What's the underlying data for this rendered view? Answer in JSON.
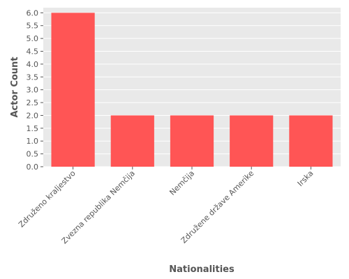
{
  "chart_data": {
    "type": "bar",
    "title": "",
    "categories": [
      "Združeno kraljestvo",
      "Zvezna republika Nemčija",
      "Nemčija",
      "Združene države Amerike",
      "Irska"
    ],
    "values": [
      6,
      2,
      2,
      2,
      2
    ],
    "xlabel": "Nationalities",
    "ylabel": "Actor Count",
    "ylim": [
      0,
      6.2
    ],
    "yticks": [
      "0.0",
      "0.5",
      "1.0",
      "1.5",
      "2.0",
      "2.5",
      "3.0",
      "3.5",
      "4.0",
      "4.5",
      "5.0",
      "5.5",
      "6.0"
    ],
    "grid": true,
    "legend": "none",
    "colors": {
      "bar": "#ff5555",
      "panel": "#e9e9e9",
      "grid": "#ffffff",
      "text": "#555555"
    }
  }
}
